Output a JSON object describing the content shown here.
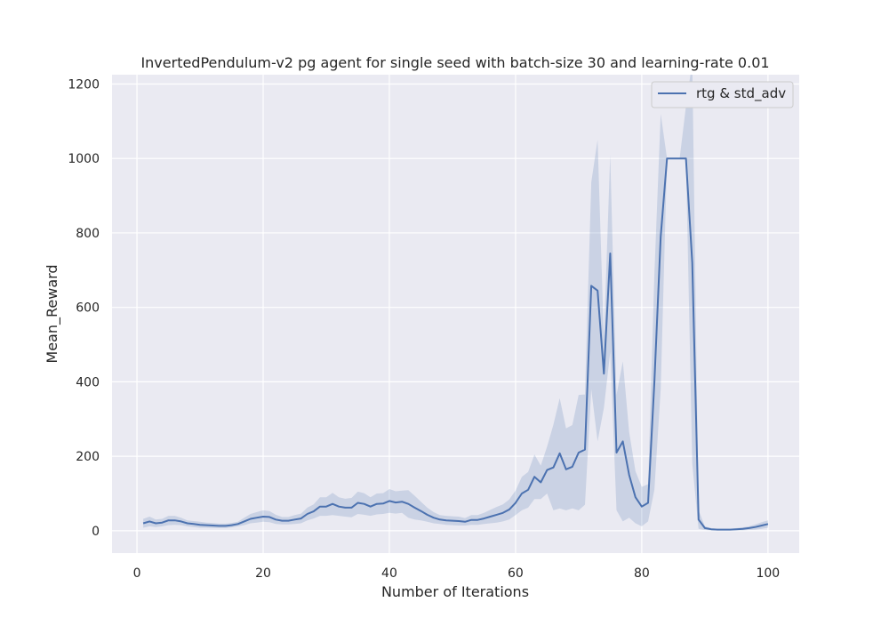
{
  "chart_data": {
    "type": "line",
    "title": "InvertedPendulum-v2 pg agent for single seed with batch-size 30 and learning-rate 0.01",
    "xlabel": "Number of Iterations",
    "ylabel": "Mean_Reward",
    "xlim": [
      -3.95,
      104.95
    ],
    "ylim": [
      -60,
      1225
    ],
    "xticks": [
      0,
      20,
      40,
      60,
      80,
      100
    ],
    "yticks": [
      0,
      200,
      400,
      600,
      800,
      1000,
      1200
    ],
    "grid": true,
    "legend_position": "top-right",
    "colors": {
      "line": "#4c72b0",
      "band": "#4c72b0",
      "background": "#eaeaf2",
      "grid": "#ffffff"
    },
    "series": [
      {
        "name": "rtg & std_adv",
        "x": [
          1,
          2,
          3,
          4,
          5,
          6,
          7,
          8,
          9,
          10,
          11,
          12,
          13,
          14,
          15,
          16,
          17,
          18,
          19,
          20,
          21,
          22,
          23,
          24,
          25,
          26,
          27,
          28,
          29,
          30,
          31,
          32,
          33,
          34,
          35,
          36,
          37,
          38,
          39,
          40,
          41,
          42,
          43,
          44,
          45,
          46,
          47,
          48,
          49,
          50,
          51,
          52,
          53,
          54,
          55,
          56,
          57,
          58,
          59,
          60,
          61,
          62,
          63,
          64,
          65,
          66,
          67,
          68,
          69,
          70,
          71,
          72,
          73,
          74,
          75,
          76,
          77,
          78,
          79,
          80,
          81,
          82,
          83,
          84,
          85,
          86,
          87,
          88,
          89,
          90,
          91,
          92,
          93,
          94,
          95,
          96,
          97,
          98,
          99,
          100
        ],
        "y": [
          20,
          25,
          20,
          22,
          28,
          28,
          25,
          20,
          18,
          16,
          15,
          14,
          13,
          13,
          15,
          18,
          25,
          32,
          35,
          38,
          37,
          30,
          27,
          27,
          30,
          33,
          45,
          52,
          65,
          65,
          72,
          65,
          62,
          62,
          75,
          72,
          65,
          72,
          73,
          80,
          76,
          78,
          72,
          62,
          53,
          43,
          35,
          30,
          28,
          27,
          26,
          24,
          29,
          29,
          33,
          38,
          43,
          48,
          57,
          75,
          100,
          110,
          145,
          130,
          163,
          170,
          208,
          165,
          172,
          210,
          218,
          658,
          645,
          422,
          745,
          210,
          240,
          150,
          90,
          65,
          75,
          400,
          790,
          1000,
          1000,
          1000,
          1000,
          720,
          30,
          7,
          4,
          3,
          3,
          3,
          4,
          5,
          7,
          10,
          14,
          18
        ],
        "band_lower": [
          8,
          12,
          10,
          12,
          15,
          16,
          15,
          12,
          10,
          8,
          8,
          7,
          7,
          7,
          9,
          12,
          15,
          20,
          22,
          24,
          23,
          18,
          17,
          17,
          18,
          20,
          28,
          33,
          40,
          40,
          42,
          40,
          38,
          36,
          45,
          43,
          40,
          44,
          45,
          48,
          46,
          48,
          35,
          30,
          28,
          24,
          20,
          18,
          16,
          15,
          14,
          14,
          16,
          16,
          18,
          20,
          22,
          25,
          30,
          42,
          55,
          62,
          85,
          85,
          100,
          55,
          60,
          55,
          60,
          55,
          70,
          380,
          240,
          330,
          480,
          55,
          25,
          35,
          20,
          12,
          25,
          110,
          380,
          1000,
          1000,
          1000,
          1000,
          180,
          5,
          2,
          1,
          1,
          1,
          1,
          1,
          1,
          2,
          3,
          5,
          8
        ],
        "band_upper": [
          32,
          38,
          30,
          32,
          40,
          40,
          35,
          28,
          26,
          24,
          22,
          21,
          19,
          19,
          21,
          24,
          35,
          45,
          50,
          55,
          53,
          43,
          37,
          37,
          42,
          46,
          62,
          71,
          90,
          90,
          102,
          90,
          86,
          88,
          105,
          101,
          90,
          100,
          101,
          112,
          106,
          108,
          109,
          94,
          78,
          62,
          50,
          42,
          40,
          39,
          38,
          34,
          42,
          42,
          48,
          56,
          64,
          71,
          84,
          108,
          145,
          158,
          205,
          175,
          226,
          285,
          356,
          275,
          284,
          365,
          366,
          936,
          1050,
          514,
          1010,
          365,
          455,
          265,
          160,
          118,
          125,
          690,
          1120,
          1000,
          1000,
          1000,
          1140,
          1260,
          55,
          12,
          7,
          5,
          5,
          5,
          7,
          9,
          12,
          17,
          23,
          28
        ]
      }
    ]
  }
}
